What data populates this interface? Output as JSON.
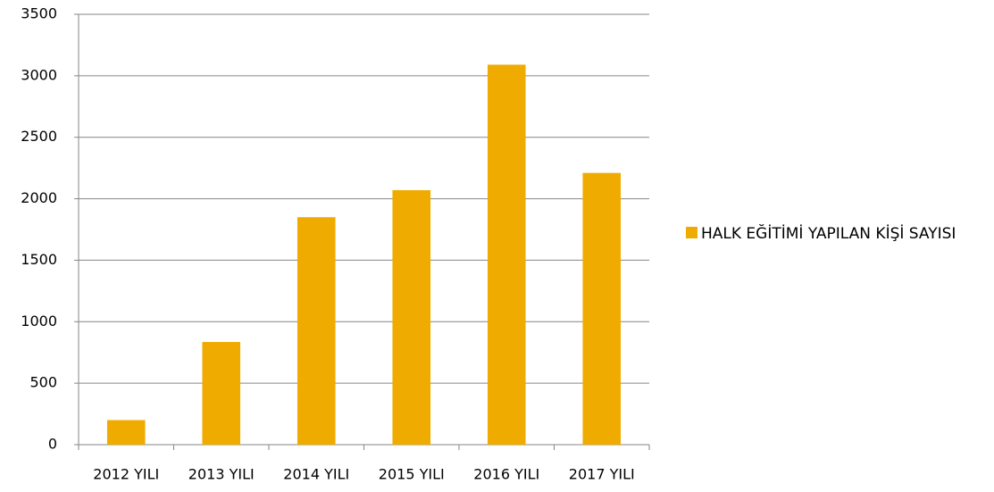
{
  "chart_data": {
    "type": "bar",
    "categories": [
      "2012 YILI",
      "2013 YILI",
      "2014 YILI",
      "2015 YILI",
      "2016 YILI",
      "2017 YILI"
    ],
    "series": [
      {
        "name": "HALK EĞİTİMİ YAPILAN KİŞİ SAYISI",
        "color": "#f0ab00",
        "values": [
          200,
          835,
          1850,
          2070,
          3090,
          2210
        ]
      }
    ],
    "ylim": [
      0,
      3500
    ],
    "yticks": [
      0,
      500,
      1000,
      1500,
      2000,
      2500,
      3000,
      3500
    ],
    "grid": true,
    "legend": "right"
  }
}
